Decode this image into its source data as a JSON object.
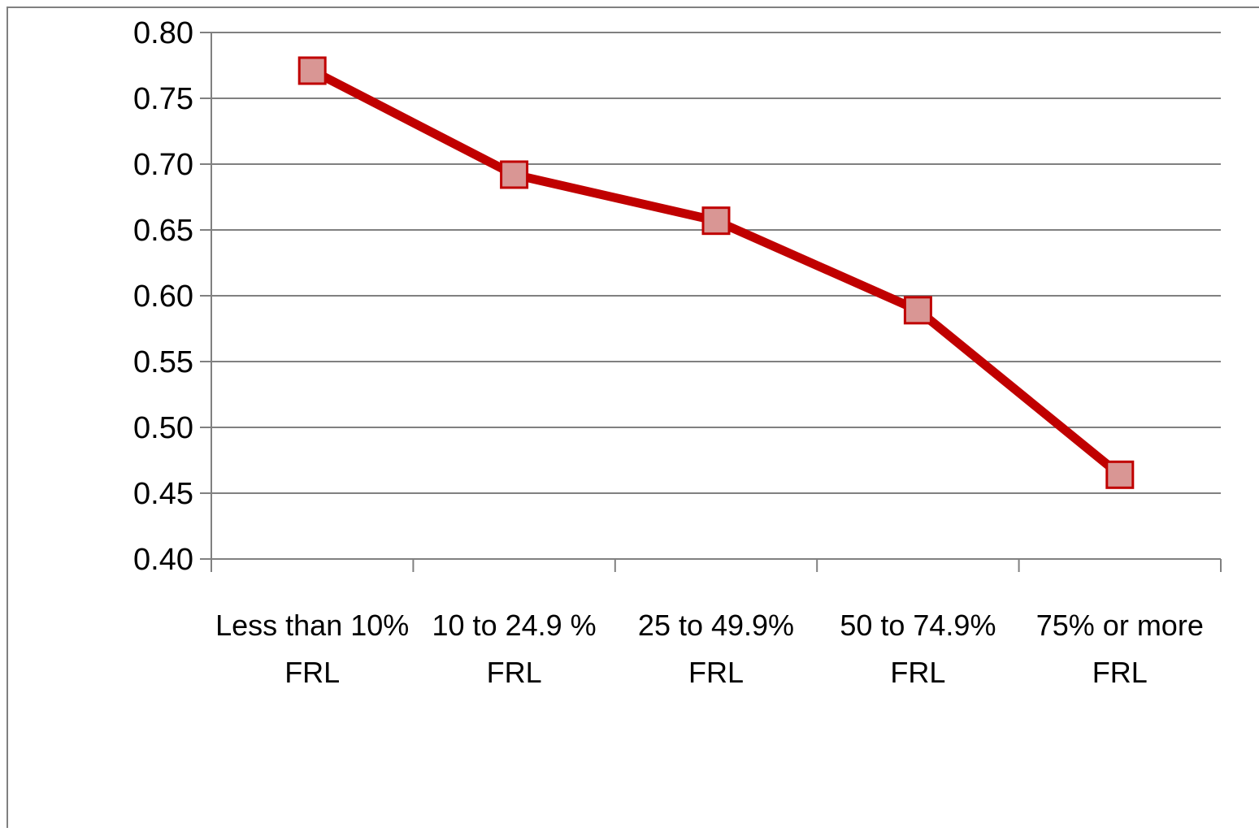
{
  "chart_data": {
    "type": "line",
    "title": "",
    "xlabel": "",
    "ylabel": "",
    "categories": [
      [
        "Less than 10%",
        "FRL"
      ],
      [
        "10 to 24.9 %",
        "FRL"
      ],
      [
        "25 to 49.9%",
        "FRL"
      ],
      [
        "50 to 74.9%",
        "FRL"
      ],
      [
        "75% or more",
        "FRL"
      ]
    ],
    "series": [
      {
        "values": [
          0.771,
          0.692,
          0.657,
          0.589,
          0.464
        ]
      }
    ],
    "ylim": [
      0.4,
      0.8
    ],
    "yticks": [
      "0.80",
      "0.75",
      "0.70",
      "0.65",
      "0.60",
      "0.55",
      "0.50",
      "0.45",
      "0.40"
    ],
    "grid": "horizontal",
    "legend": "none",
    "colors": {
      "line": "#c00000",
      "marker_fill": "#d99694",
      "marker_stroke": "#c00000",
      "grid": "#808080",
      "axis": "#808080"
    }
  }
}
